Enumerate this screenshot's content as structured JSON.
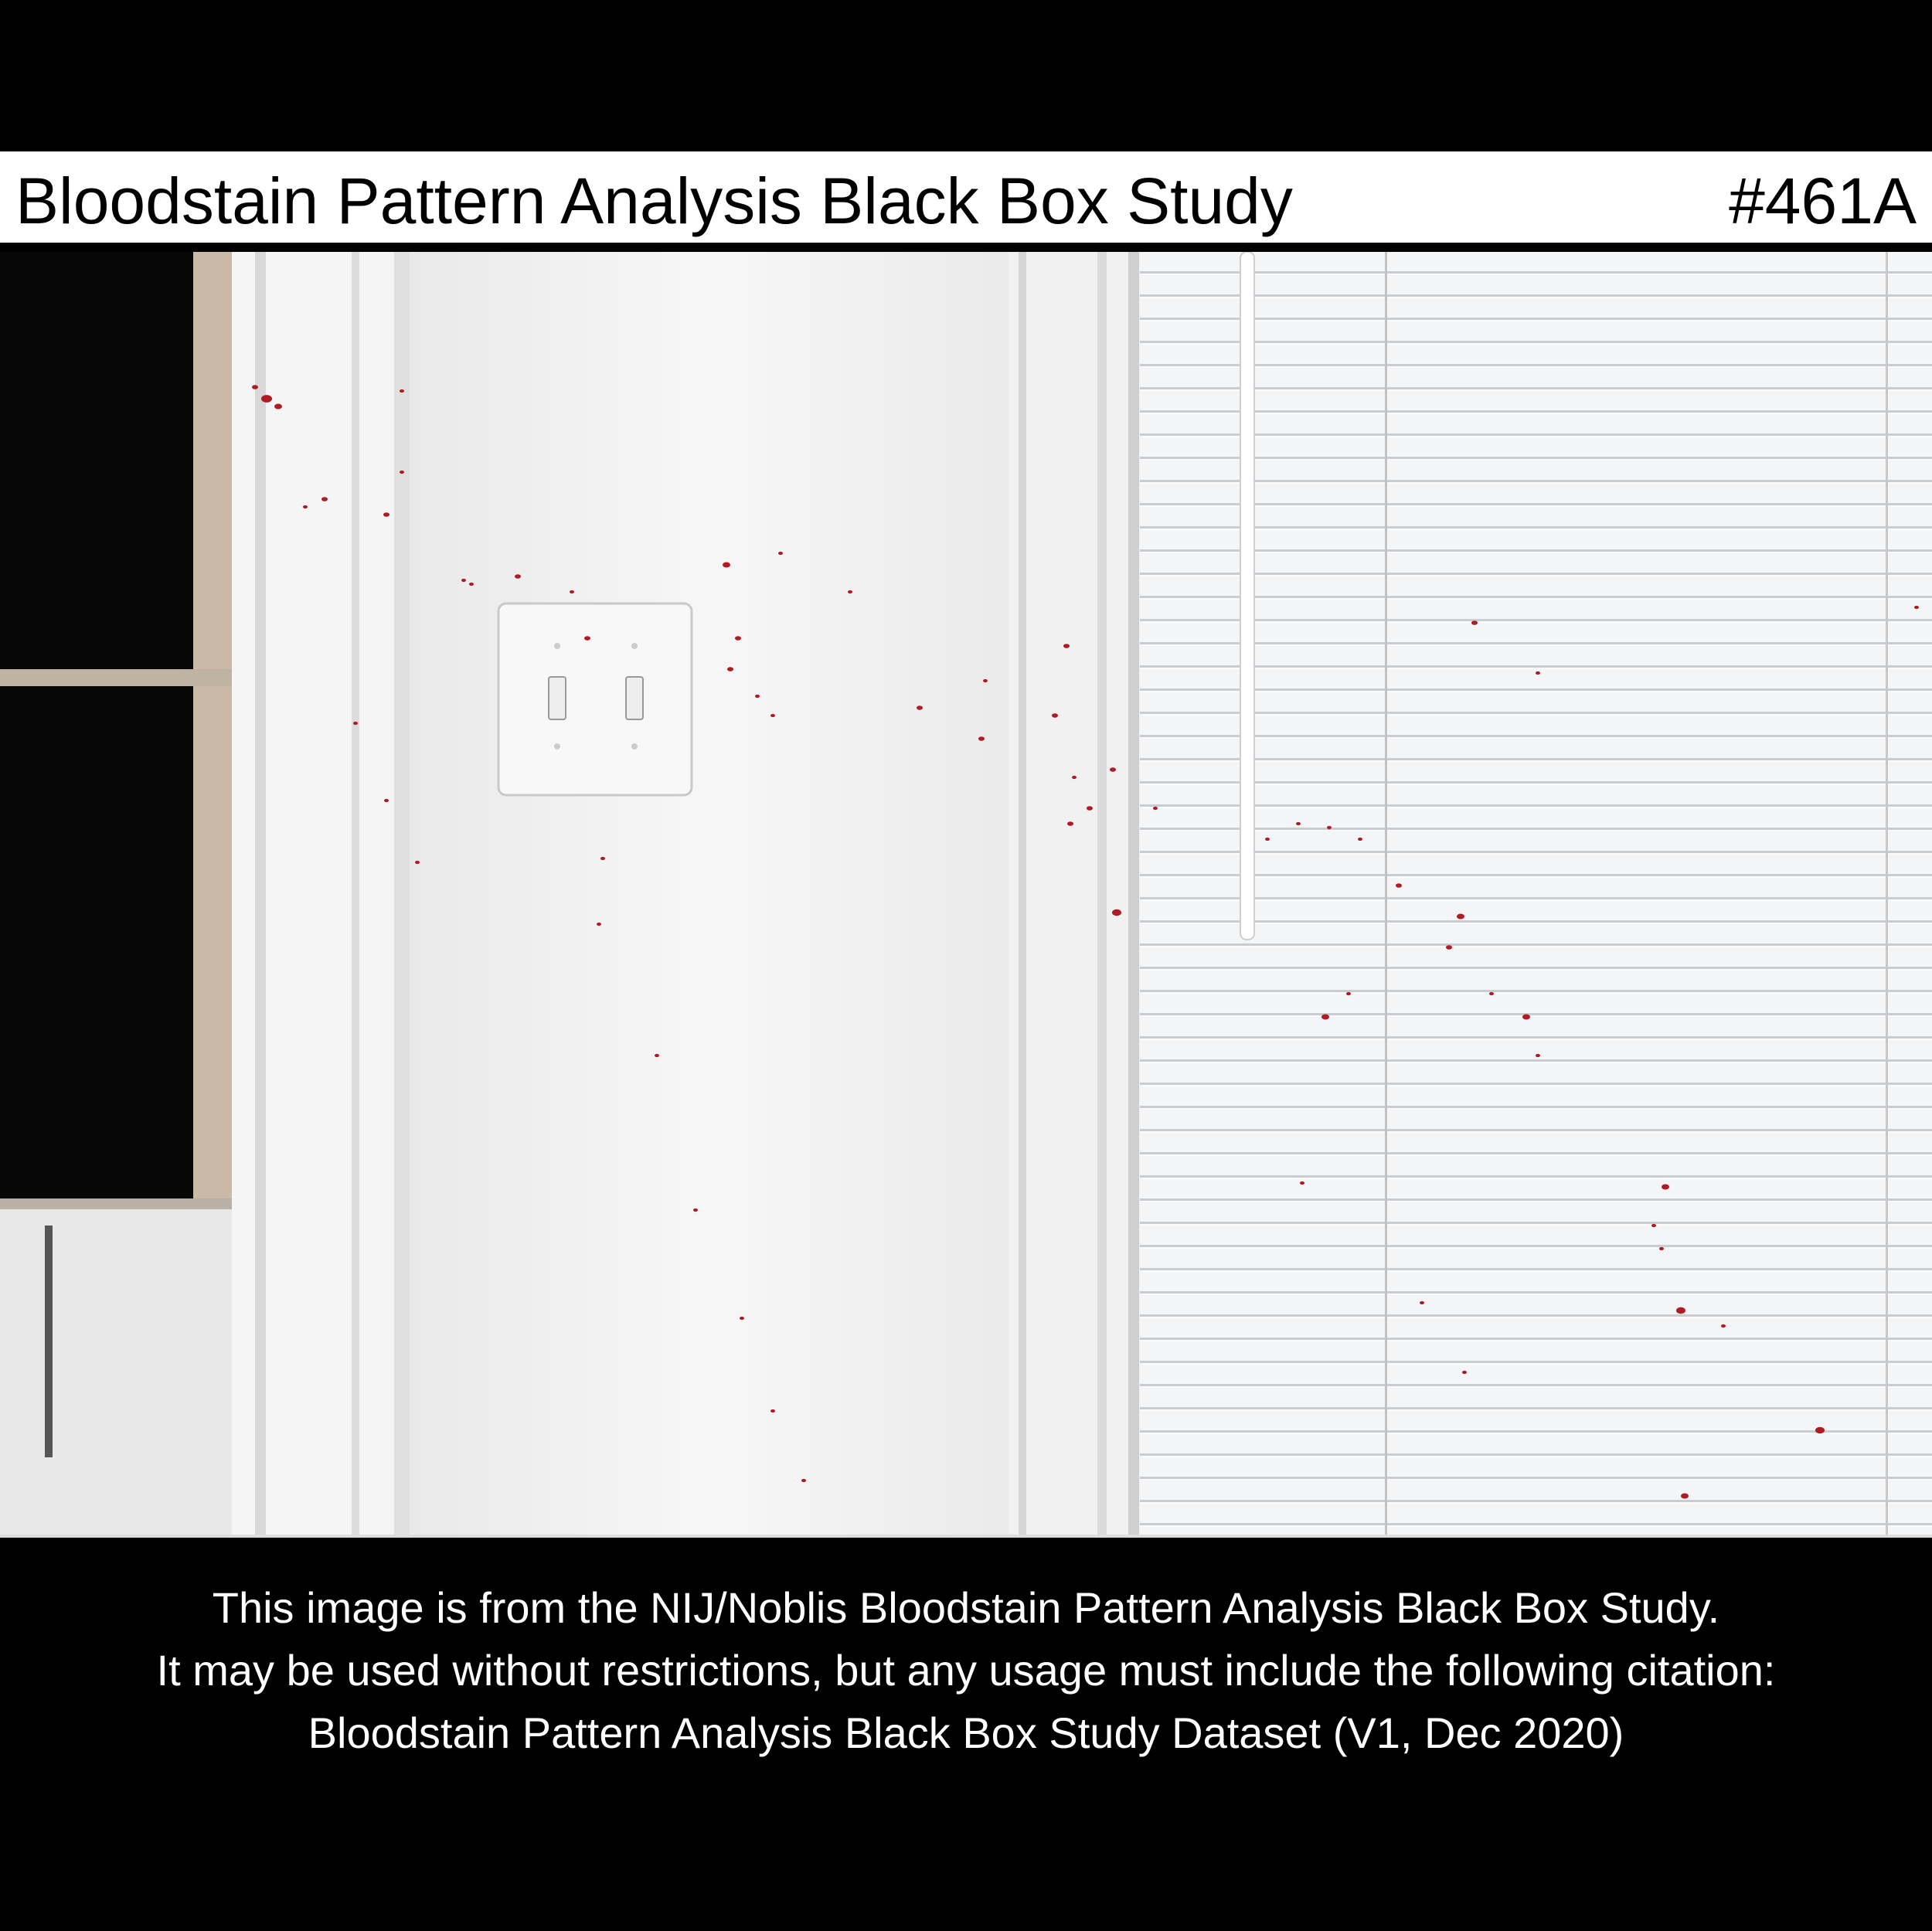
{
  "header": {
    "title": "Bloodstain Pattern Analysis Black Box Study",
    "image_id": "#461A"
  },
  "photo": {
    "subject_icons": [
      "window-icon",
      "door-frame-icon",
      "light-switch-icon",
      "window-blinds-icon",
      "blood-spatter-icon"
    ],
    "colors": {
      "wall": "#f4f4f4",
      "blood": "#b01a22",
      "dark_window": "#0a0a0a",
      "blinds": "#e9ecef"
    }
  },
  "caption": {
    "line1": "This image is from the NIJ/Noblis Bloodstain Pattern Analysis Black Box Study.",
    "line2": "It may be used without restrictions, but any usage must include the following citation:",
    "line3": "Bloodstain Pattern Analysis Black Box Study Dataset (V1, Dec 2020)"
  }
}
